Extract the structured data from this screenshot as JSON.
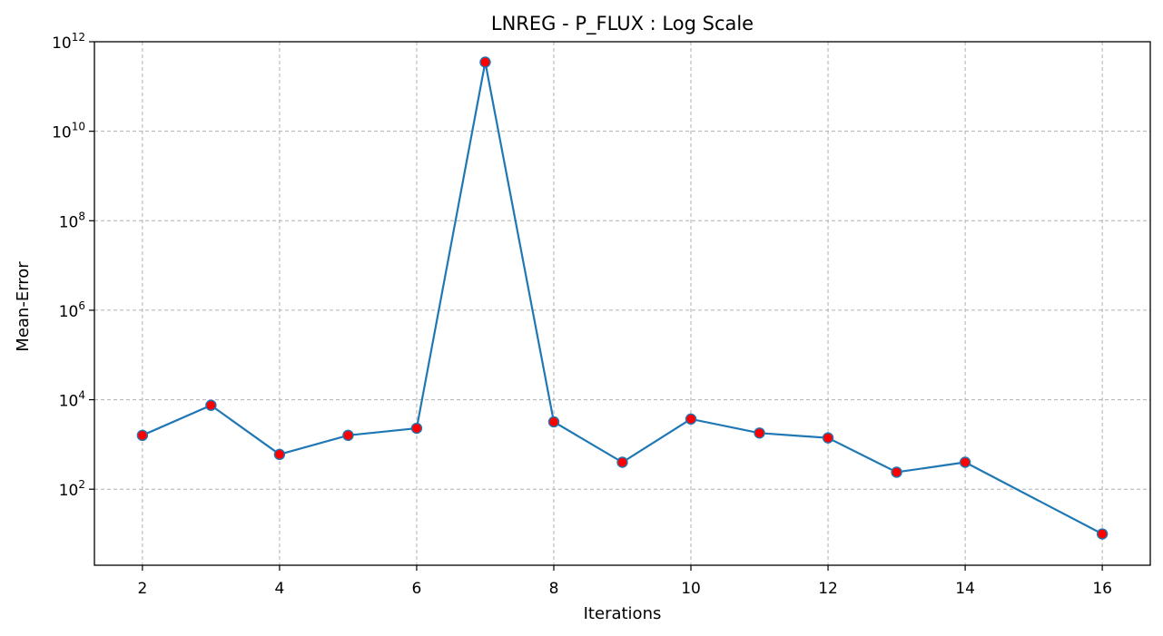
{
  "chart_data": {
    "type": "line",
    "title": "LNREG - P_FLUX : Log Scale",
    "xlabel": "Iterations",
    "ylabel": "Mean-Error",
    "x": [
      2,
      3,
      4,
      5,
      6,
      7,
      8,
      9,
      10,
      11,
      12,
      13,
      14,
      16
    ],
    "series": [
      {
        "values": [
          1600,
          7500,
          600,
          1600,
          2300,
          350000000000,
          3200,
          400,
          3700,
          1800,
          1400,
          240,
          400,
          10
        ],
        "line_color": "#1f77b4",
        "marker_face": "#ff0000",
        "marker_edge": "#1f77b4"
      }
    ],
    "xlim": [
      1.3,
      16.7
    ],
    "ylim": [
      2,
      1000000000000
    ],
    "yscale": "log",
    "xticks": [
      2,
      4,
      6,
      8,
      10,
      12,
      14,
      16
    ],
    "xtick_labels": [
      "2",
      "4",
      "6",
      "8",
      "10",
      "12",
      "14",
      "16"
    ],
    "yticks": [
      100,
      10000,
      1000000,
      100000000,
      10000000000,
      1000000000000
    ],
    "ytick_bases": [
      "10",
      "10",
      "10",
      "10",
      "10",
      "10"
    ],
    "ytick_exponents": [
      "2",
      "4",
      "6",
      "8",
      "10",
      "12"
    ],
    "grid": true,
    "grid_color": "#b0b0b0",
    "legend": "none"
  }
}
